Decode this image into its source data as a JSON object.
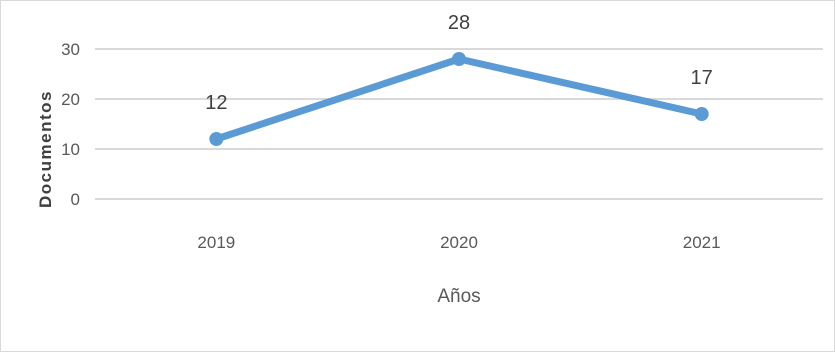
{
  "chart_data": {
    "type": "line",
    "categories": [
      "2019",
      "2020",
      "2021"
    ],
    "series": [
      {
        "values": [
          12,
          28,
          17
        ],
        "color": "#5b9bd5"
      }
    ],
    "data_labels": [
      "12",
      "28",
      "17"
    ],
    "xlabel": "Años",
    "ylabel": "Documentos",
    "ylim": [
      0,
      30
    ],
    "yticks": [
      "0",
      "10",
      "20",
      "30"
    ],
    "grid": true,
    "legend": "none",
    "gridline_color": "#d9d9d9"
  }
}
